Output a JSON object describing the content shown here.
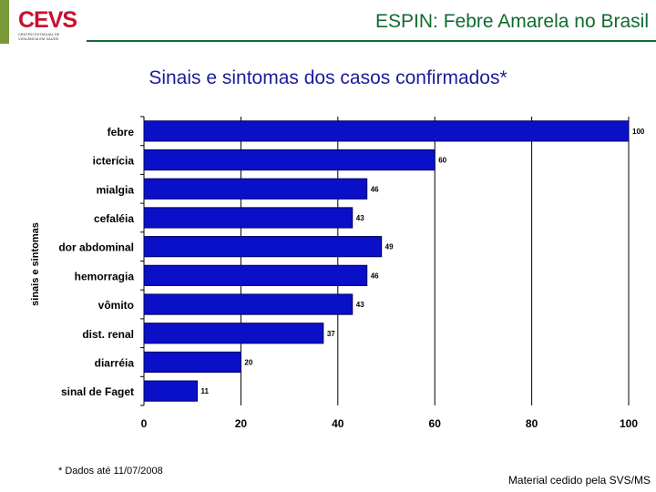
{
  "header": {
    "logo_text": "CEVS",
    "logo_subtext": "CENTRO ESTADUAL DE VIGILÂNCIA EM SAÚDE",
    "title": "ESPIN: Febre Amarela no Brasil"
  },
  "subtitle": "Sinais e sintomas dos casos confirmados*",
  "footnote": "* Dados até 11/07/2008",
  "credit": "Material cedido pela SVS/MS",
  "colors": {
    "bar": "#0a10c8",
    "bar_edge": "#000060",
    "title": "#0f6b30",
    "subtitle": "#1c1c9a",
    "logo": "#c8102e"
  },
  "chart_data": {
    "type": "bar",
    "orientation": "horizontal",
    "ylabel": "sinais e sintomas",
    "xlabel": "",
    "xlim": [
      0,
      100
    ],
    "xticks": [
      0,
      20,
      40,
      60,
      80,
      100
    ],
    "grid": "vertical",
    "categories": [
      "febre",
      "icterícia",
      "mialgia",
      "cefaléia",
      "dor abdominal",
      "hemorragia",
      "vômito",
      "dist. renal",
      "diarréia",
      "sinal de Faget"
    ],
    "values": [
      100,
      60,
      46,
      43,
      49,
      46,
      43,
      37,
      20,
      11
    ],
    "value_labels": [
      "100",
      "60",
      "46",
      "43",
      "49",
      "46",
      "43",
      "37",
      "20",
      "11"
    ]
  }
}
